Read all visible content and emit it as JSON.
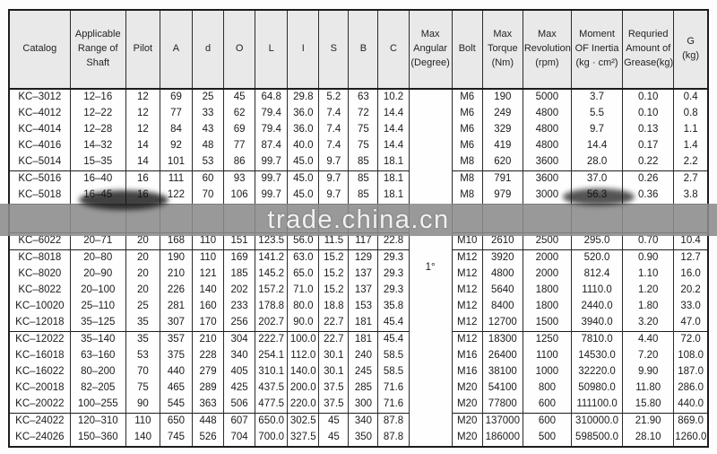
{
  "watermark": {
    "text": "trade.china.cn"
  },
  "table": {
    "headers": [
      "Catalog",
      "Applicable\nRange of\nShaft",
      "Pilot",
      "A",
      "d",
      "O",
      "L",
      "I",
      "S",
      "B",
      "C",
      "Max\nAngular\n(Degree)",
      "Bolt",
      "Max\nTorque\n(Nm)",
      "Max\nRevolution\n(rpm)",
      "Moment\nOF Inertia\n(kg · cm²)",
      "Requried\nAmount of\nGrease(kg)",
      "G\n(kg)"
    ],
    "max_angular": "1°",
    "groups": [
      {
        "rows": [
          [
            "KC–3012",
            "12–16",
            "12",
            "69",
            "25",
            "45",
            "64.8",
            "29.8",
            "5.2",
            "63",
            "10.2",
            "M6",
            "190",
            "5000",
            "3.7",
            "0.10",
            "0.4"
          ],
          [
            "KC–4012",
            "12–22",
            "12",
            "77",
            "33",
            "62",
            "79.4",
            "36.0",
            "7.4",
            "72",
            "14.4",
            "M6",
            "249",
            "4800",
            "5.5",
            "0.10",
            "0.8"
          ],
          [
            "KC–4014",
            "12–28",
            "12",
            "84",
            "43",
            "69",
            "79.4",
            "36.0",
            "7.4",
            "75",
            "14.4",
            "M6",
            "329",
            "4800",
            "9.7",
            "0.13",
            "1.1"
          ],
          [
            "KC–4016",
            "14–32",
            "14",
            "92",
            "48",
            "77",
            "87.4",
            "40.0",
            "7.4",
            "75",
            "14.4",
            "M6",
            "419",
            "4800",
            "14.4",
            "0.17",
            "1.4"
          ],
          [
            "KC–5014",
            "15–35",
            "14",
            "101",
            "53",
            "86",
            "99.7",
            "45.0",
            "9.7",
            "85",
            "18.1",
            "M8",
            "620",
            "3600",
            "28.0",
            "0.22",
            "2.2"
          ]
        ]
      },
      {
        "rows": [
          [
            "KC–5016",
            "16–40",
            "16",
            "111",
            "60",
            "93",
            "99.7",
            "45.0",
            "9.7",
            "85",
            "18.1",
            "M8",
            "791",
            "3600",
            "37.0",
            "0.26",
            "2.7"
          ],
          [
            "KC–5018",
            "16–45",
            "16",
            "122",
            "70",
            "106",
            "99.7",
            "45.0",
            "9.7",
            "85",
            "18.1",
            "M8",
            "979",
            "3000",
            "56.3",
            "0.36",
            "3.8"
          ]
        ]
      },
      {
        "rows": [
          [
            "KC–6022",
            "20–71",
            "20",
            "168",
            "110",
            "151",
            "123.5",
            "56.0",
            "11.5",
            "117",
            "22.8",
            "M10",
            "2610",
            "2500",
            "295.0",
            "0.70",
            "10.4"
          ]
        ]
      },
      {
        "rows": [
          [
            "KC–8018",
            "20–80",
            "20",
            "190",
            "110",
            "169",
            "141.2",
            "63.0",
            "15.2",
            "129",
            "29.3",
            "M12",
            "3920",
            "2000",
            "520.0",
            "0.90",
            "12.7"
          ],
          [
            "KC–8020",
            "20–90",
            "20",
            "210",
            "121",
            "185",
            "145.2",
            "65.0",
            "15.2",
            "137",
            "29.3",
            "M12",
            "4800",
            "2000",
            "812.4",
            "1.10",
            "16.0"
          ],
          [
            "KC–8022",
            "20–100",
            "20",
            "226",
            "140",
            "202",
            "157.2",
            "71.0",
            "15.2",
            "137",
            "29.3",
            "M12",
            "5640",
            "1800",
            "1110.0",
            "1.20",
            "20.2"
          ],
          [
            "KC–10020",
            "25–110",
            "25",
            "281",
            "160",
            "233",
            "178.8",
            "80.0",
            "18.8",
            "153",
            "35.8",
            "M12",
            "8400",
            "1800",
            "2440.0",
            "1.80",
            "33.0"
          ],
          [
            "KC–12018",
            "35–125",
            "35",
            "307",
            "170",
            "256",
            "202.7",
            "90.0",
            "22.7",
            "181",
            "45.4",
            "M12",
            "12700",
            "1500",
            "3940.0",
            "3.20",
            "47.0"
          ]
        ]
      },
      {
        "rows": [
          [
            "KC–12022",
            "35–140",
            "35",
            "357",
            "210",
            "304",
            "222.7",
            "100.0",
            "22.7",
            "181",
            "45.4",
            "M12",
            "18300",
            "1250",
            "7810.0",
            "4.40",
            "72.0"
          ],
          [
            "KC–16018",
            "63–160",
            "53",
            "375",
            "228",
            "340",
            "254.1",
            "112.0",
            "30.1",
            "240",
            "58.5",
            "M16",
            "26400",
            "1100",
            "14530.0",
            "7.20",
            "108.0"
          ],
          [
            "KC–16022",
            "80–200",
            "70",
            "440",
            "279",
            "405",
            "310.1",
            "140.0",
            "30.1",
            "245",
            "58.5",
            "M16",
            "38100",
            "1000",
            "32220.0",
            "9.90",
            "187.0"
          ],
          [
            "KC–20018",
            "82–205",
            "75",
            "465",
            "289",
            "425",
            "437.5",
            "200.0",
            "37.5",
            "285",
            "71.6",
            "M20",
            "54100",
            "800",
            "50980.0",
            "11.80",
            "286.0"
          ],
          [
            "KC–20022",
            "100–255",
            "90",
            "545",
            "363",
            "506",
            "477.5",
            "220.0",
            "37.5",
            "300",
            "71.6",
            "M20",
            "77800",
            "600",
            "111100.0",
            "15.80",
            "440.0"
          ]
        ]
      },
      {
        "rows": [
          [
            "KC–24022",
            "120–310",
            "110",
            "650",
            "448",
            "607",
            "650.0",
            "302.5",
            "45",
            "340",
            "87.8",
            "M20",
            "137000",
            "600",
            "310000.0",
            "21.90",
            "869.0"
          ],
          [
            "KC–24026",
            "150–360",
            "140",
            "745",
            "526",
            "704",
            "700.0",
            "327.5",
            "45",
            "350",
            "87.8",
            "M20",
            "186000",
            "500",
            "598500.0",
            "28.10",
            "1260.0"
          ]
        ]
      }
    ]
  }
}
